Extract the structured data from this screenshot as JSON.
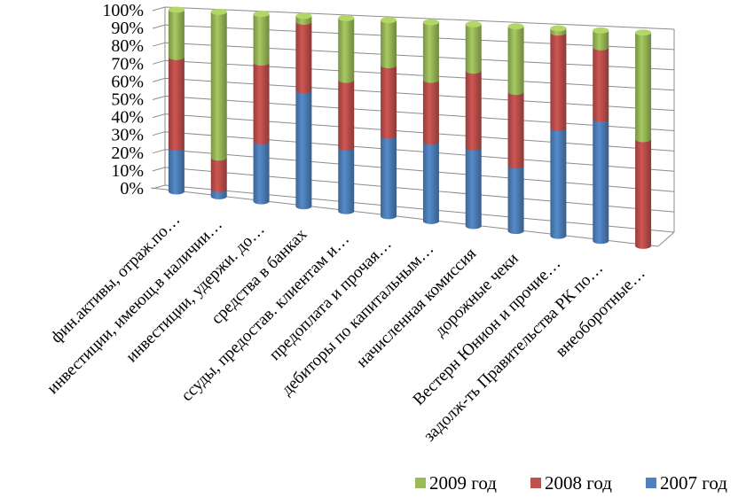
{
  "chart_data": {
    "type": "bar",
    "stacked": "percent",
    "three_d": true,
    "title": "",
    "xlabel": "",
    "ylabel": "",
    "ylim": [
      0,
      100
    ],
    "y_ticks": [
      "0%",
      "10%",
      "20%",
      "30%",
      "40%",
      "50%",
      "60%",
      "70%",
      "80%",
      "90%",
      "100%"
    ],
    "grid": true,
    "legend_position": "bottom-right",
    "categories": [
      "фин.активы, отраж.по…",
      "инвестиции, имеющ.в наличии…",
      "инвестиции, удержи. до…",
      "средства в банках",
      "ссуды, предостав. клиентам и…",
      "предоплата и прочая…",
      "дебиторы по капитальным…",
      "начисленная комиссия",
      "дорожные чеки",
      "Вестерн Юнион и прочие…",
      "задолж-ть Правительства  РК по…",
      "внеоборотные…"
    ],
    "series": [
      {
        "name": "2007 год",
        "color": "#4f81bd",
        "values": [
          24,
          4,
          32,
          61,
          33,
          41,
          40,
          39,
          32,
          52,
          58,
          0
        ]
      },
      {
        "name": "2008 год",
        "color": "#c0504d",
        "values": [
          50,
          17,
          42,
          36,
          35,
          36,
          31,
          38,
          36,
          46,
          34,
          50
        ]
      },
      {
        "name": "2009 год",
        "color": "#9bbb59",
        "values": [
          26,
          79,
          26,
          3,
          32,
          23,
          29,
          23,
          32,
          2,
          8,
          50
        ]
      }
    ],
    "legend_order": [
      "2009 год",
      "2008 год",
      "2007 год"
    ]
  }
}
